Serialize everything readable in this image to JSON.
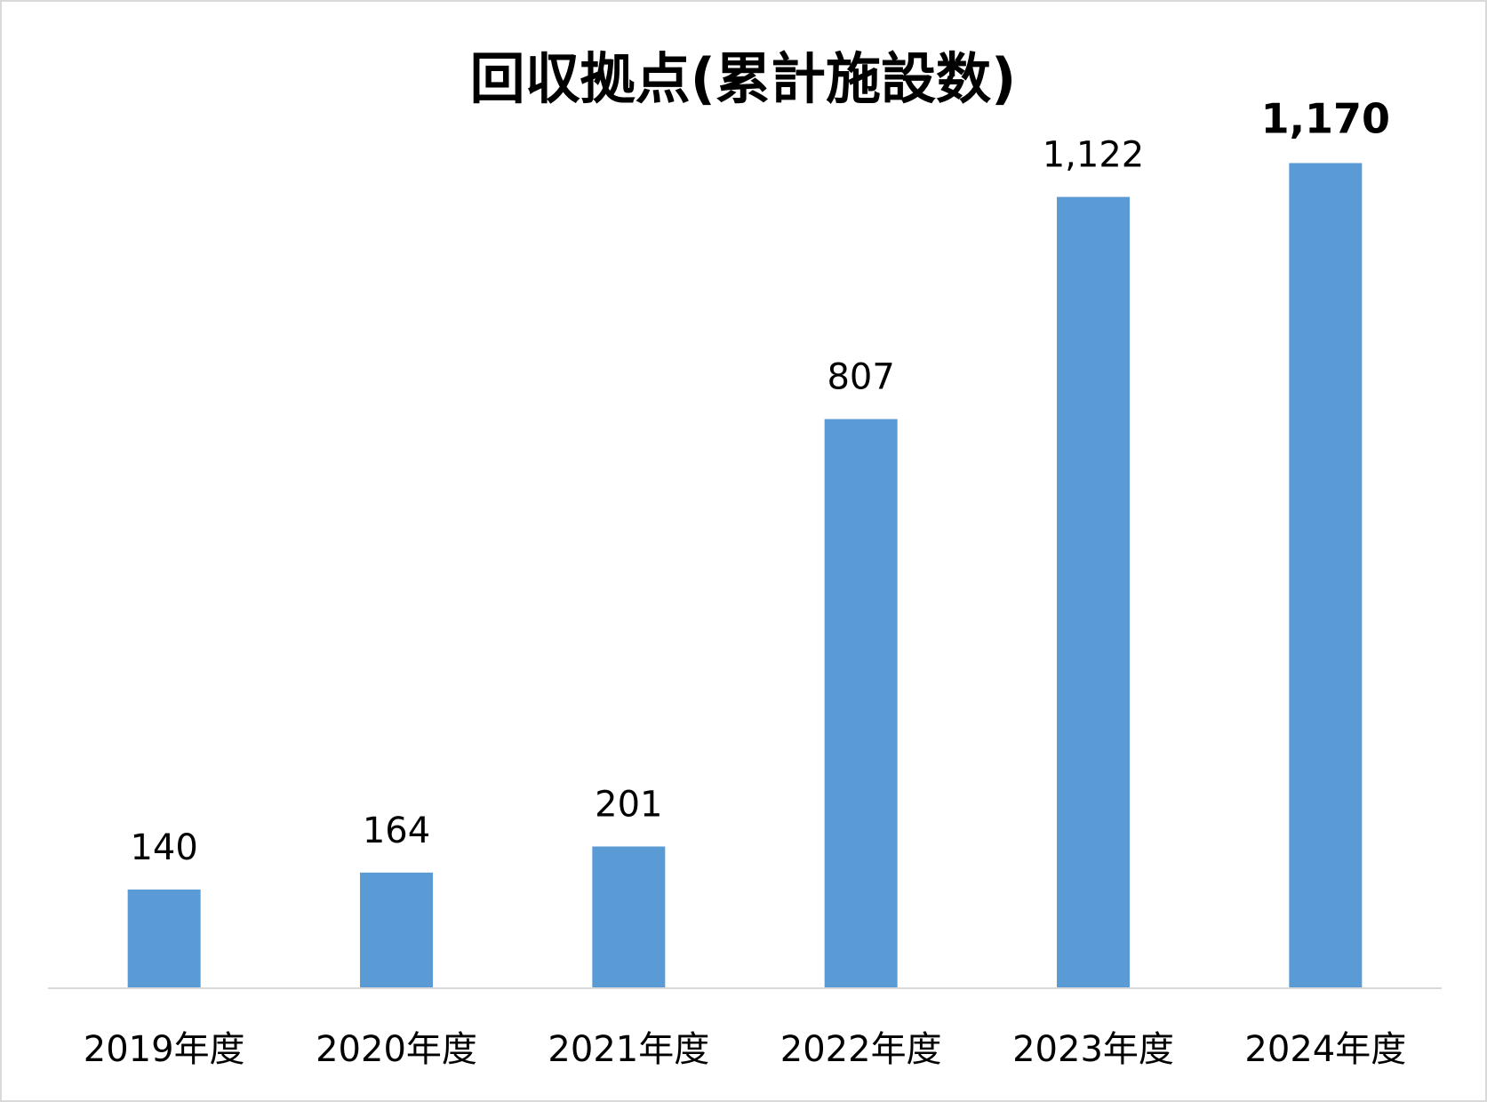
{
  "chart_data": {
    "type": "bar",
    "title": "回収拠点(累計施設数)",
    "categories": [
      "2019年度",
      "2020年度",
      "2021年度",
      "2022年度",
      "2023年度",
      "2024年度"
    ],
    "values": [
      140,
      164,
      201,
      807,
      1122,
      1170
    ],
    "value_labels": [
      "140",
      "164",
      "201",
      "807",
      "1,122",
      "1,170"
    ],
    "highlighted_value_index": 5,
    "xlabel": "",
    "ylabel": "",
    "ylim": [
      0,
      1250
    ],
    "grid": false,
    "legend": "none",
    "colors": {
      "bar": "#5b9bd5",
      "axis": "#d9d9d9",
      "text": "#000000"
    }
  }
}
